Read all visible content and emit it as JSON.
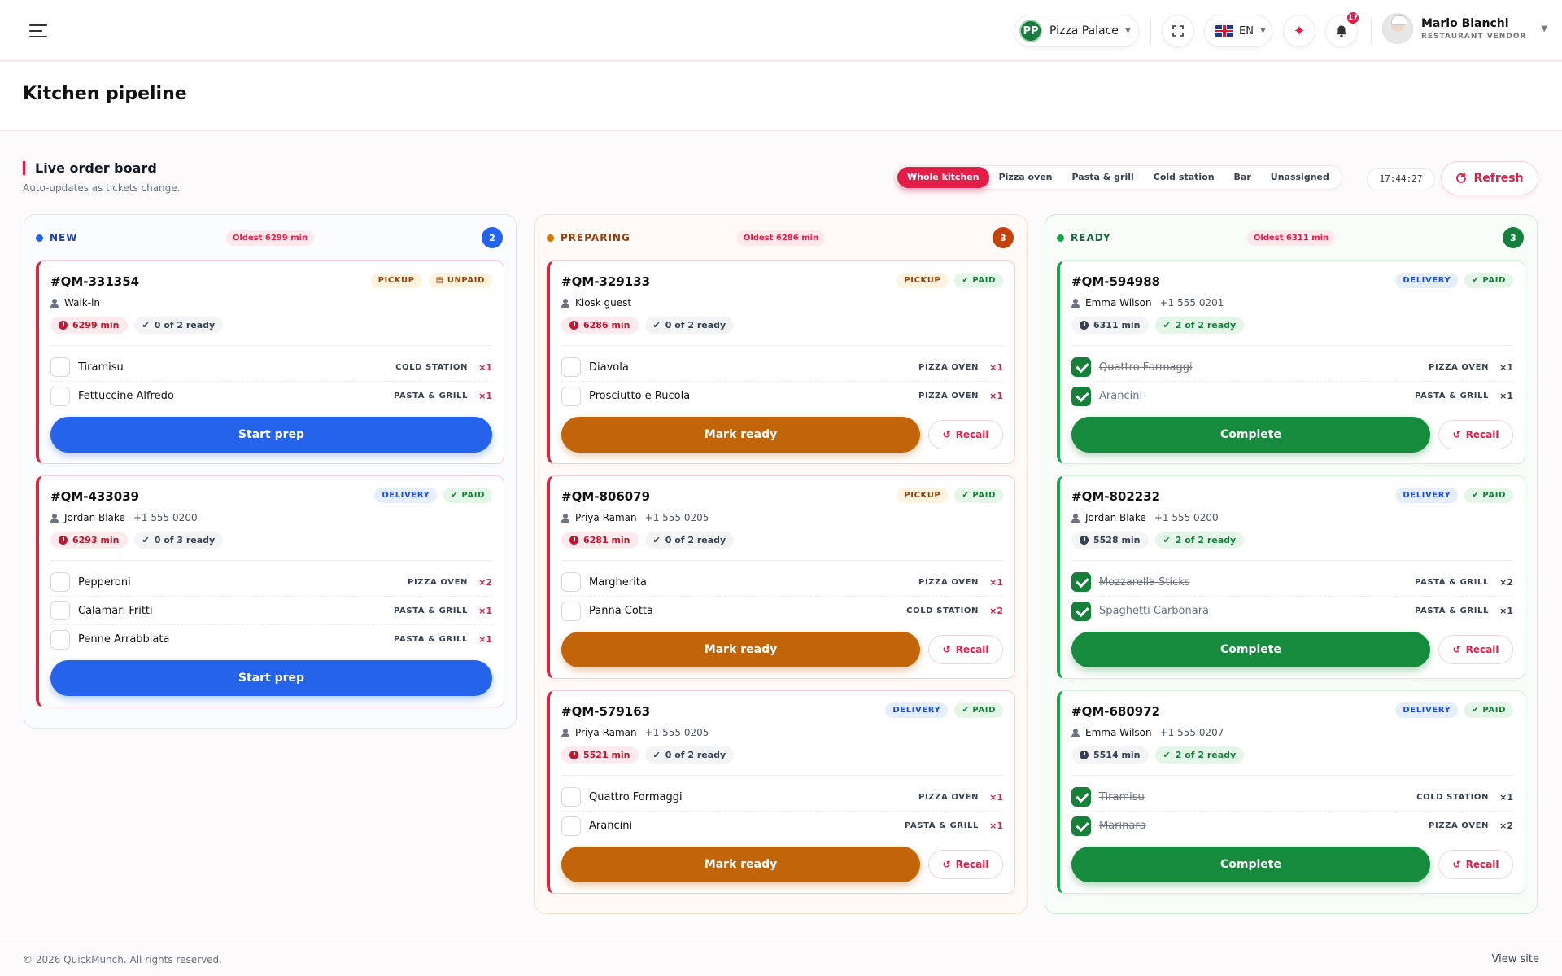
{
  "header": {
    "restaurant": {
      "initials": "PP",
      "name": "Pizza Palace"
    },
    "language": "EN",
    "notifications": "17",
    "user": {
      "name": "Mario Bianchi",
      "role": "RESTAURANT VENDOR"
    }
  },
  "page": {
    "title": "Kitchen pipeline"
  },
  "board": {
    "title": "Live order board",
    "subtitle": "Auto-updates as tickets change.",
    "filters": [
      "Whole kitchen",
      "Pizza oven",
      "Pasta & grill",
      "Cold station",
      "Bar",
      "Unassigned"
    ],
    "active_filter": "Whole kitchen",
    "clock": "17:44:27",
    "refresh_label": "Refresh"
  },
  "columns": {
    "new": {
      "name": "NEW",
      "oldest": "Oldest 6299 min",
      "count": "2",
      "tickets": [
        {
          "id": "#QM-331354",
          "type": "PICKUP",
          "payment": "UNPAID",
          "customer": "Walk-in",
          "phone": "",
          "time": "6299 min",
          "ready": "0 of 2 ready",
          "items": [
            {
              "name": "Tiramisu",
              "station": "COLD STATION",
              "qty": "×1"
            },
            {
              "name": "Fettuccine Alfredo",
              "station": "PASTA & GRILL",
              "qty": "×1"
            }
          ],
          "action": "Start prep"
        },
        {
          "id": "#QM-433039",
          "type": "DELIVERY",
          "payment": "PAID",
          "customer": "Jordan Blake",
          "phone": "+1 555 0200",
          "time": "6293 min",
          "ready": "0 of 3 ready",
          "items": [
            {
              "name": "Pepperoni",
              "station": "PIZZA OVEN",
              "qty": "×2"
            },
            {
              "name": "Calamari Fritti",
              "station": "PASTA & GRILL",
              "qty": "×1"
            },
            {
              "name": "Penne Arrabbiata",
              "station": "PASTA & GRILL",
              "qty": "×1"
            }
          ],
          "action": "Start prep"
        }
      ]
    },
    "prep": {
      "name": "PREPARING",
      "oldest": "Oldest 6286 min",
      "count": "3",
      "tickets": [
        {
          "id": "#QM-329133",
          "type": "PICKUP",
          "payment": "PAID",
          "customer": "Kiosk guest",
          "phone": "",
          "time": "6286 min",
          "ready": "0 of 2 ready",
          "items": [
            {
              "name": "Diavola",
              "station": "PIZZA OVEN",
              "qty": "×1"
            },
            {
              "name": "Prosciutto e Rucola",
              "station": "PIZZA OVEN",
              "qty": "×1"
            }
          ],
          "action": "Mark ready",
          "recall": "Recall"
        },
        {
          "id": "#QM-806079",
          "type": "PICKUP",
          "payment": "PAID",
          "customer": "Priya Raman",
          "phone": "+1 555 0205",
          "time": "6281 min",
          "ready": "0 of 2 ready",
          "items": [
            {
              "name": "Margherita",
              "station": "PIZZA OVEN",
              "qty": "×1"
            },
            {
              "name": "Panna Cotta",
              "station": "COLD STATION",
              "qty": "×2"
            }
          ],
          "action": "Mark ready",
          "recall": "Recall"
        },
        {
          "id": "#QM-579163",
          "type": "DELIVERY",
          "payment": "PAID",
          "customer": "Priya Raman",
          "phone": "+1 555 0205",
          "time": "5521 min",
          "ready": "0 of 2 ready",
          "items": [
            {
              "name": "Quattro Formaggi",
              "station": "PIZZA OVEN",
              "qty": "×1"
            },
            {
              "name": "Arancini",
              "station": "PASTA & GRILL",
              "qty": "×1"
            }
          ],
          "action": "Mark ready",
          "recall": "Recall"
        }
      ]
    },
    "ready": {
      "name": "READY",
      "oldest": "Oldest 6311 min",
      "count": "3",
      "tickets": [
        {
          "id": "#QM-594988",
          "type": "DELIVERY",
          "payment": "PAID",
          "customer": "Emma Wilson",
          "phone": "+1 555 0201",
          "time": "6311 min",
          "ready": "2 of 2 ready",
          "items": [
            {
              "name": "Quattro Formaggi",
              "station": "PIZZA OVEN",
              "qty": "×1"
            },
            {
              "name": "Arancini",
              "station": "PASTA & GRILL",
              "qty": "×1"
            }
          ],
          "action": "Complete",
          "recall": "Recall"
        },
        {
          "id": "#QM-802232",
          "type": "DELIVERY",
          "payment": "PAID",
          "customer": "Jordan Blake",
          "phone": "+1 555 0200",
          "time": "5528 min",
          "ready": "2 of 2 ready",
          "items": [
            {
              "name": "Mozzarella Sticks",
              "station": "PASTA & GRILL",
              "qty": "×2"
            },
            {
              "name": "Spaghetti Carbonara",
              "station": "PASTA & GRILL",
              "qty": "×1"
            }
          ],
          "action": "Complete",
          "recall": "Recall"
        },
        {
          "id": "#QM-680972",
          "type": "DELIVERY",
          "payment": "PAID",
          "customer": "Emma Wilson",
          "phone": "+1 555 0207",
          "time": "5514 min",
          "ready": "2 of 2 ready",
          "items": [
            {
              "name": "Tiramisu",
              "station": "COLD STATION",
              "qty": "×1"
            },
            {
              "name": "Marinara",
              "station": "PIZZA OVEN",
              "qty": "×2"
            }
          ],
          "action": "Complete",
          "recall": "Recall"
        }
      ]
    }
  },
  "footer": {
    "copyright": "© 2026 QuickMunch. All rights reserved.",
    "view_site": "View site"
  }
}
